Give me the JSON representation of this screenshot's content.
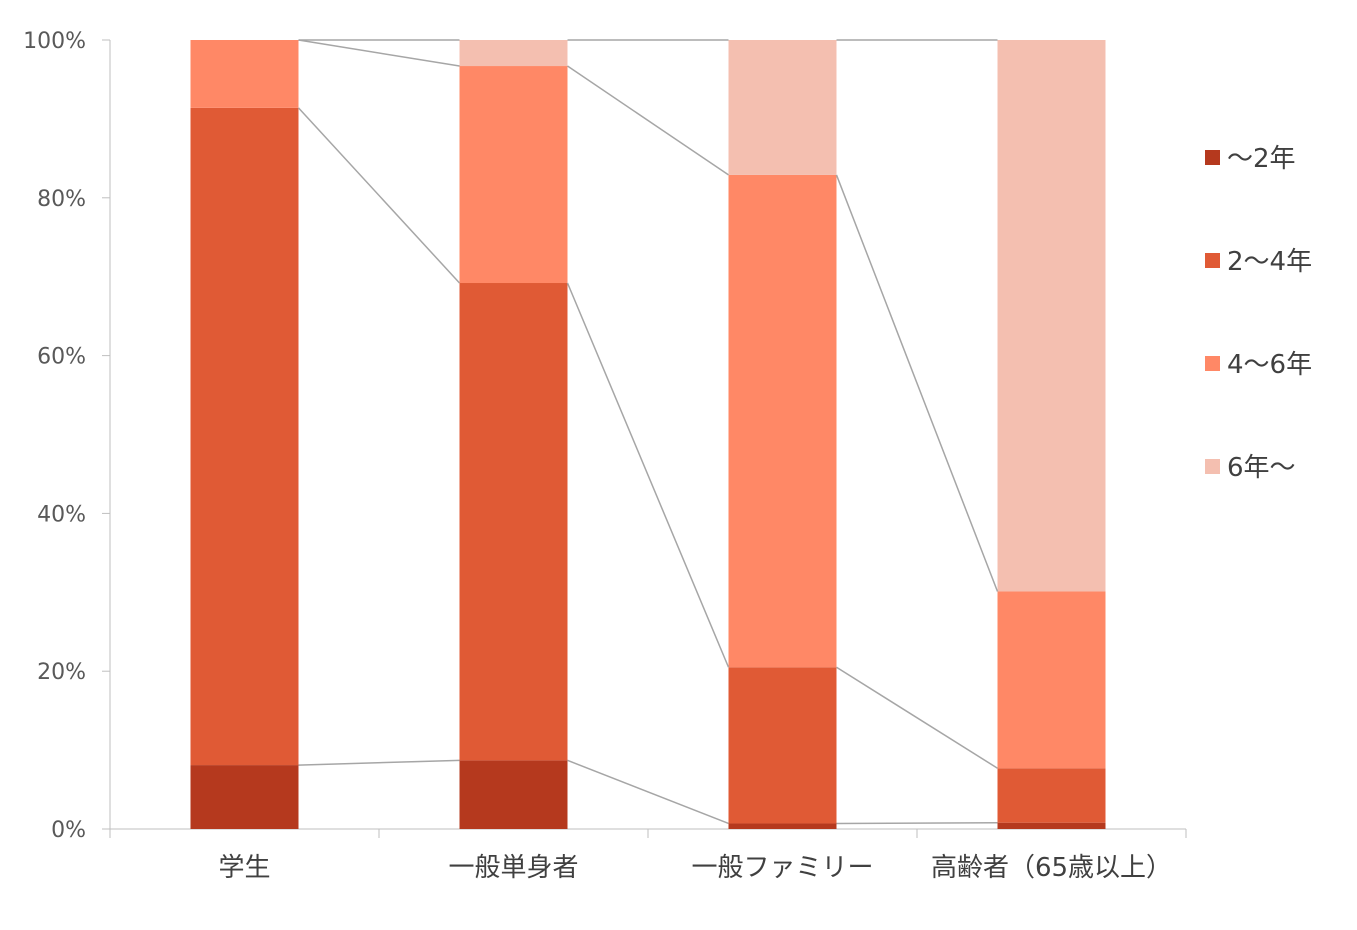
{
  "chart_data": {
    "type": "bar",
    "stacked": true,
    "percent": true,
    "series_lines": true,
    "categories": [
      "学生",
      "一般単身者",
      "一般ファミリー",
      "高齢者（65歳以上）"
    ],
    "series": [
      {
        "name": "〜2年",
        "color": "#B5391E",
        "values": [
          8.1,
          8.7,
          0.7,
          0.8
        ]
      },
      {
        "name": "2〜4年",
        "color": "#E05A35",
        "values": [
          83.3,
          60.5,
          19.8,
          6.9
        ]
      },
      {
        "name": "4〜6年",
        "color": "#FF8866",
        "values": [
          8.6,
          27.5,
          62.4,
          22.4
        ]
      },
      {
        "name": "6年〜",
        "color": "#F4BFB0",
        "values": [
          0.0,
          3.3,
          17.1,
          69.9
        ]
      }
    ],
    "ylim": [
      0,
      100
    ],
    "yticks": [
      "0%",
      "20%",
      "40%",
      "60%",
      "80%",
      "100%"
    ],
    "ytick_values": [
      0,
      20,
      40,
      60,
      80,
      100
    ],
    "legend_position": "right",
    "grid": false
  }
}
